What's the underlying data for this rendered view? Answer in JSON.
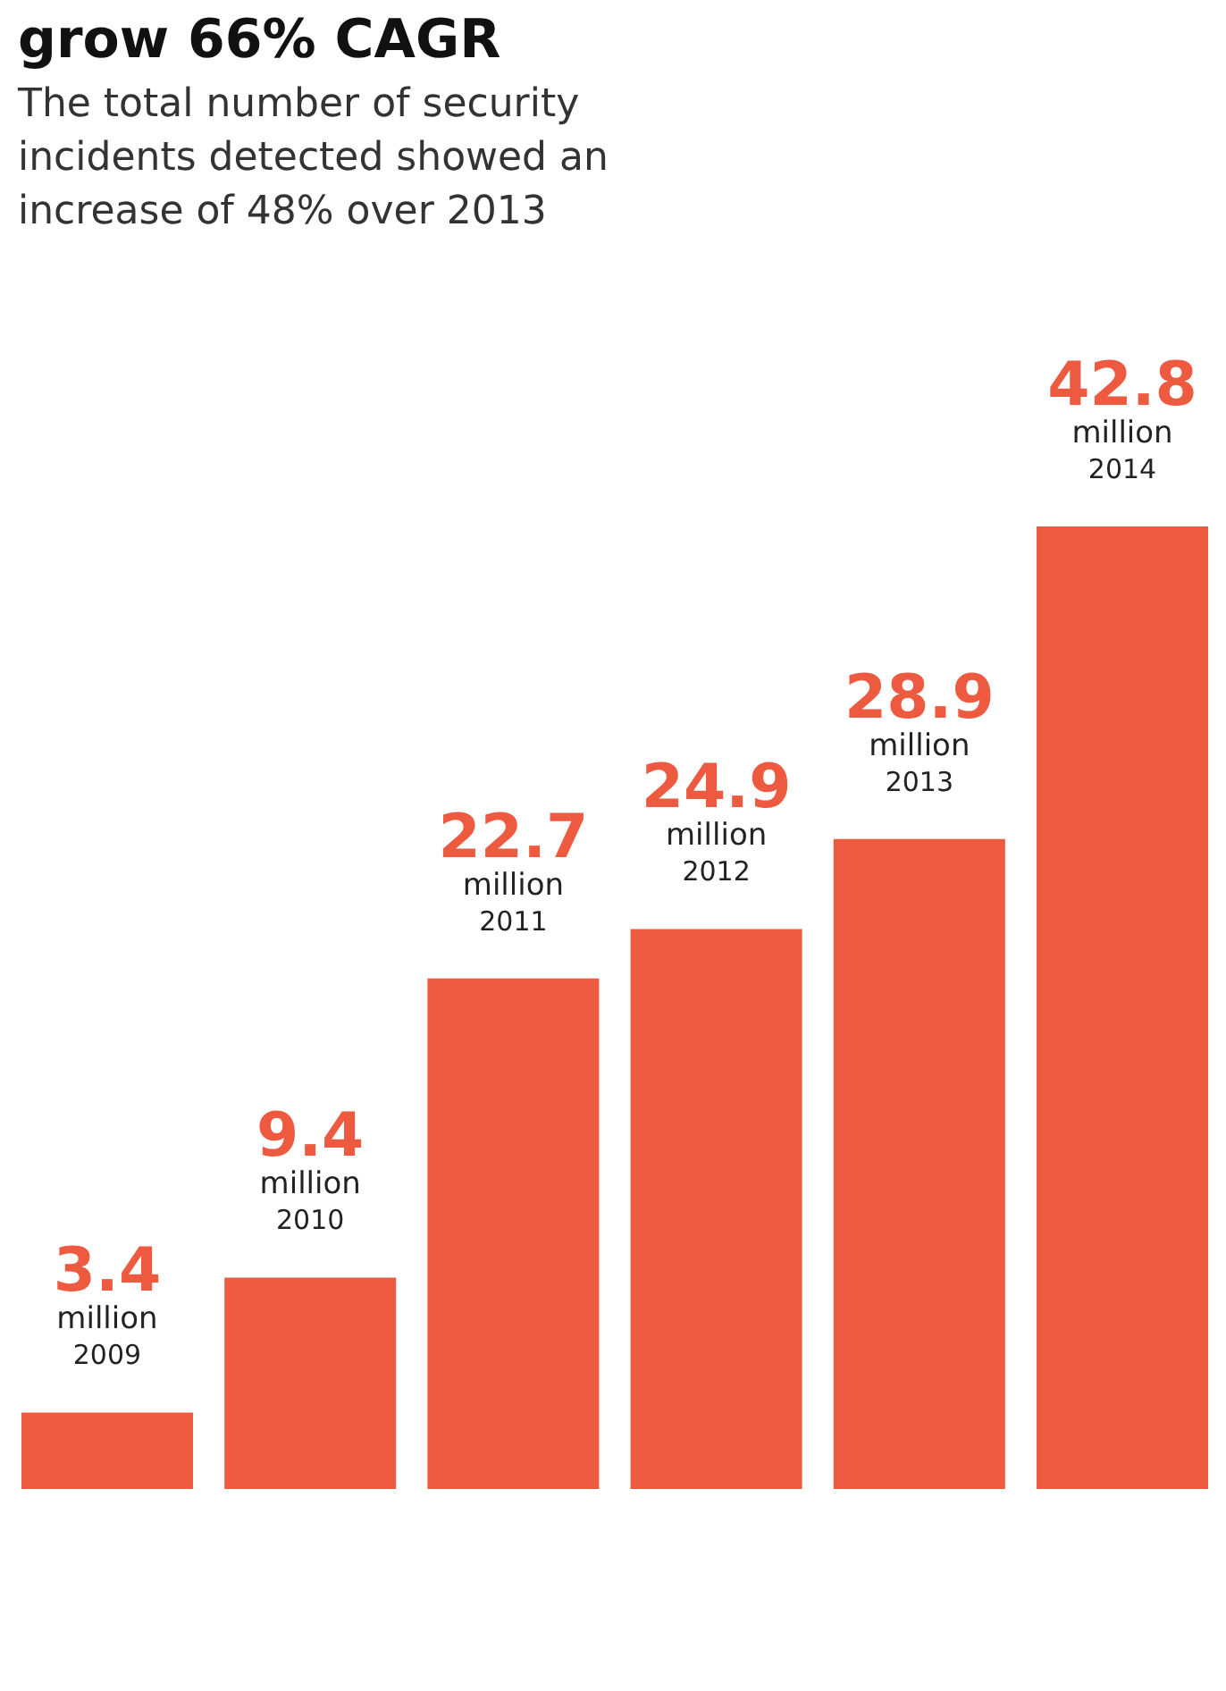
{
  "chart_data": {
    "type": "bar",
    "title": "grow 66% CAGR",
    "subtitle": "The total number of security\nincidents detected showed an\nincrease of 48% over 2013",
    "ylabel": "million",
    "categories": [
      "2009",
      "2010",
      "2011",
      "2012",
      "2013",
      "2014"
    ],
    "values": [
      3.4,
      9.4,
      22.7,
      24.9,
      28.9,
      42.8
    ],
    "color": "#ee5a3f",
    "data_labels": true
  }
}
